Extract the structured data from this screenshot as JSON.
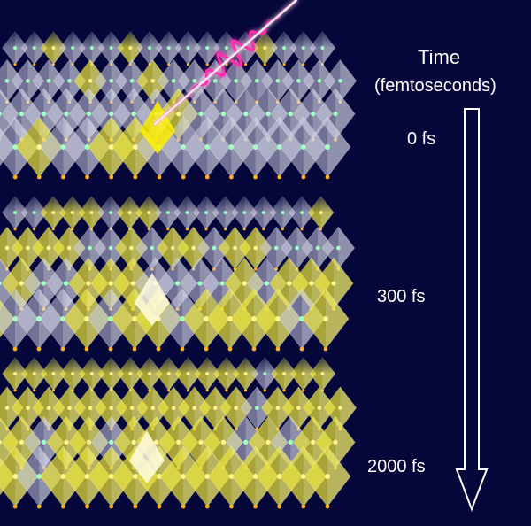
{
  "axis": {
    "title": "Time",
    "unit": "(femtoseconds)"
  },
  "snapshots": [
    {
      "label": "0 fs",
      "excited_fraction": 0.15
    },
    {
      "label": "300 fs",
      "excited_fraction": 0.45
    },
    {
      "label": "2000 fs",
      "excited_fraction": 0.9
    }
  ],
  "colors": {
    "background": "#05063a",
    "excited": "#e8e23a",
    "ground": "#c9cbe0",
    "pulse": "#ff2fb0",
    "arrow": "#ffffff",
    "atom_orange": "#ffb020",
    "atom_green": "#9effc0"
  }
}
